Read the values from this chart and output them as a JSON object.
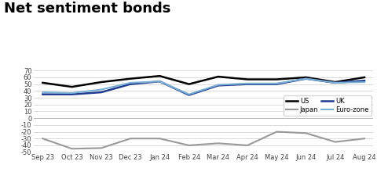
{
  "title": "Net sentiment bonds",
  "x_labels": [
    "Sep 23",
    "Oct 23",
    "Nov 23",
    "Dec 23",
    "Jan 24",
    "Feb 24",
    "Mar 24",
    "Apr 24",
    "May 24",
    "Jun 24",
    "Jul 24",
    "Aug 24"
  ],
  "US": [
    52,
    46,
    53,
    58,
    62,
    50,
    61,
    57,
    57,
    60,
    53,
    60
  ],
  "UK": [
    35,
    35,
    38,
    50,
    54,
    34,
    48,
    50,
    50,
    58,
    52,
    55
  ],
  "Euro_zone": [
    38,
    37,
    42,
    52,
    54,
    35,
    49,
    51,
    51,
    58,
    52,
    53
  ],
  "Japan": [
    -30,
    -45,
    -44,
    -30,
    -30,
    -40,
    -37,
    -40,
    -20,
    -22,
    -35,
    -30
  ],
  "colors": {
    "US": "#000000",
    "UK": "#1f3a8f",
    "Euro_zone": "#7ab0d4",
    "Japan": "#999999"
  },
  "ylim": [
    -50,
    70
  ],
  "yticks": [
    -50,
    -40,
    -30,
    -20,
    -10,
    0,
    10,
    20,
    30,
    40,
    50,
    60,
    70
  ],
  "title_fontsize": 13,
  "tick_fontsize": 6,
  "background_color": "#ffffff",
  "grid_color": "#cccccc"
}
